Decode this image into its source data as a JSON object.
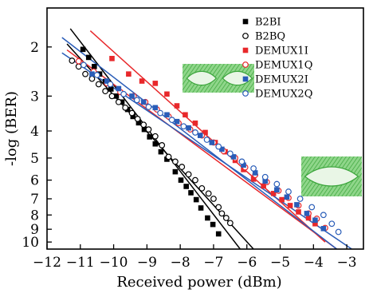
{
  "chart_data": {
    "type": "scatter",
    "xlabel": "Received power (dBm)",
    "ylabel": "-log (BER)",
    "x_axis": {
      "range": [
        -12,
        -2.5
      ],
      "ticks": [
        -12,
        -11,
        -10,
        -9,
        -8,
        -7,
        -6,
        -5,
        -4,
        -3
      ],
      "tick_labels": [
        "−12",
        "−11",
        "−10",
        "−9",
        "−8",
        "−7",
        "−6",
        "−5",
        "−4",
        "−3"
      ]
    },
    "y_axis": {
      "scale": "log(-log10 BER)",
      "range": [
        1.45,
        10.6
      ],
      "ticks": [
        2,
        3,
        4,
        5,
        6,
        7,
        8,
        9,
        10
      ],
      "tick_labels": [
        "2",
        "3",
        "4",
        "5",
        "6",
        "7",
        "8",
        "9",
        "10"
      ],
      "inverted": true
    },
    "legend": {
      "position": "top-right",
      "frame": false
    },
    "insets": [
      {
        "content": "eye-diagram",
        "position": "upper-middle"
      },
      {
        "content": "eye-diagram",
        "position": "lower-right"
      }
    ],
    "series": [
      {
        "name": "B2BI",
        "marker": "square-filled",
        "color": "#000000",
        "points": [
          [
            -10.92,
            2.04
          ],
          [
            -10.75,
            2.18
          ],
          [
            -10.58,
            2.35
          ],
          [
            -10.42,
            2.5
          ],
          [
            -10.25,
            2.66
          ],
          [
            -10.08,
            2.83
          ],
          [
            -9.92,
            3.0
          ],
          [
            -9.75,
            3.15
          ],
          [
            -9.58,
            3.35
          ],
          [
            -9.42,
            3.55
          ],
          [
            -9.25,
            3.74
          ],
          [
            -9.08,
            3.95
          ],
          [
            -8.92,
            4.2
          ],
          [
            -8.75,
            4.45
          ],
          [
            -8.58,
            4.75
          ],
          [
            -8.4,
            5.05
          ],
          [
            -8.15,
            5.6
          ],
          [
            -7.98,
            6.0
          ],
          [
            -7.82,
            6.32
          ],
          [
            -7.68,
            6.66
          ],
          [
            -7.52,
            7.05
          ],
          [
            -7.38,
            7.55
          ],
          [
            -7.18,
            8.2
          ],
          [
            -7.02,
            8.65
          ],
          [
            -6.85,
            9.35
          ]
        ],
        "fit": [
          [
            -11.3,
            1.72
          ],
          [
            -6.2,
            10.6
          ]
        ]
      },
      {
        "name": "B2BQ",
        "marker": "circle-open",
        "color": "#000000",
        "points": [
          [
            -11.25,
            2.24
          ],
          [
            -11.05,
            2.35
          ],
          [
            -10.85,
            2.5
          ],
          [
            -10.65,
            2.6
          ],
          [
            -10.45,
            2.72
          ],
          [
            -10.25,
            2.88
          ],
          [
            -10.05,
            3.0
          ],
          [
            -9.85,
            3.15
          ],
          [
            -9.65,
            3.3
          ],
          [
            -9.45,
            3.45
          ],
          [
            -9.28,
            3.62
          ],
          [
            -9.1,
            3.8
          ],
          [
            -8.95,
            3.95
          ],
          [
            -8.75,
            4.18
          ],
          [
            -8.55,
            4.5
          ],
          [
            -8.35,
            4.95
          ],
          [
            -8.15,
            5.15
          ],
          [
            -7.95,
            5.38
          ],
          [
            -7.75,
            5.72
          ],
          [
            -7.55,
            6.0
          ],
          [
            -7.35,
            6.42
          ],
          [
            -7.15,
            6.7
          ],
          [
            -7.0,
            7.0
          ],
          [
            -6.85,
            7.5
          ],
          [
            -6.75,
            7.9
          ],
          [
            -6.62,
            8.2
          ],
          [
            -6.5,
            8.55
          ]
        ],
        "fit": [
          [
            -11.4,
            1.95
          ],
          [
            -5.8,
            10.6
          ]
        ]
      },
      {
        "name": "DEMUX1I",
        "marker": "square-filled",
        "color": "#e8282b",
        "points": [
          [
            -10.05,
            2.2
          ],
          [
            -9.55,
            2.5
          ],
          [
            -9.15,
            2.65
          ],
          [
            -8.75,
            2.7
          ],
          [
            -8.4,
            2.95
          ],
          [
            -8.1,
            3.25
          ],
          [
            -7.85,
            3.5
          ],
          [
            -7.55,
            3.75
          ],
          [
            -7.25,
            4.05
          ],
          [
            -6.95,
            4.4
          ],
          [
            -6.65,
            4.75
          ],
          [
            -6.35,
            5.1
          ],
          [
            -6.1,
            5.5
          ],
          [
            -5.8,
            5.95
          ],
          [
            -5.5,
            6.3
          ],
          [
            -5.2,
            6.7
          ],
          [
            -4.95,
            7.05
          ],
          [
            -4.7,
            7.4
          ],
          [
            -4.45,
            7.8
          ],
          [
            -4.15,
            8.2
          ],
          [
            -3.95,
            8.6
          ]
        ],
        "fit": [
          [
            -10.7,
            1.75
          ],
          [
            -3.65,
            10.0
          ]
        ]
      },
      {
        "name": "DEMUX1Q",
        "marker": "circle-open",
        "color": "#e8282b",
        "points": [
          [
            -11.05,
            2.25
          ],
          [
            -10.6,
            2.45
          ],
          [
            -10.2,
            2.7
          ],
          [
            -9.8,
            2.9
          ],
          [
            -9.4,
            3.0
          ],
          [
            -9.05,
            3.15
          ],
          [
            -8.7,
            3.35
          ],
          [
            -8.35,
            3.55
          ],
          [
            -8.05,
            3.75
          ],
          [
            -7.7,
            3.95
          ],
          [
            -7.35,
            4.15
          ],
          [
            -7.0,
            4.4
          ],
          [
            -6.7,
            4.72
          ],
          [
            -6.35,
            5.0
          ],
          [
            -6.05,
            5.4
          ],
          [
            -5.75,
            5.75
          ],
          [
            -5.4,
            6.1
          ],
          [
            -5.05,
            6.55
          ],
          [
            -4.75,
            6.95
          ],
          [
            -4.45,
            7.4
          ],
          [
            -4.15,
            7.9
          ],
          [
            -3.9,
            8.25
          ],
          [
            -3.65,
            8.9
          ]
        ],
        "fit": [
          [
            -11.4,
            2.05
          ],
          [
            -3.3,
            10.6
          ]
        ]
      },
      {
        "name": "DEMUX2I",
        "marker": "square-filled",
        "color": "#2a5db8",
        "points": [
          [
            -10.65,
            2.5
          ],
          [
            -10.2,
            2.65
          ],
          [
            -9.85,
            2.82
          ],
          [
            -9.45,
            3.0
          ],
          [
            -9.1,
            3.15
          ],
          [
            -8.75,
            3.3
          ],
          [
            -8.4,
            3.5
          ],
          [
            -8.1,
            3.7
          ],
          [
            -7.75,
            3.9
          ],
          [
            -7.4,
            4.15
          ],
          [
            -7.05,
            4.4
          ],
          [
            -6.75,
            4.65
          ],
          [
            -6.4,
            4.95
          ],
          [
            -6.1,
            5.3
          ],
          [
            -5.75,
            5.65
          ],
          [
            -5.45,
            6.05
          ],
          [
            -5.1,
            6.5
          ],
          [
            -4.8,
            6.9
          ],
          [
            -4.5,
            7.35
          ],
          [
            -4.2,
            7.9
          ],
          [
            -3.95,
            8.35
          ],
          [
            -3.7,
            8.95
          ]
        ],
        "fit": [
          [
            -11.55,
            1.85
          ],
          [
            -3.3,
            10.6
          ]
        ]
      },
      {
        "name": "DEMUX2Q",
        "marker": "circle-open",
        "color": "#2a5db8",
        "points": [
          [
            -10.9,
            2.32
          ],
          [
            -10.5,
            2.52
          ],
          [
            -10.1,
            2.72
          ],
          [
            -9.7,
            2.95
          ],
          [
            -9.3,
            3.1
          ],
          [
            -8.95,
            3.28
          ],
          [
            -8.6,
            3.45
          ],
          [
            -8.25,
            3.65
          ],
          [
            -7.9,
            3.85
          ],
          [
            -7.55,
            4.05
          ],
          [
            -7.2,
            4.3
          ],
          [
            -6.85,
            4.55
          ],
          [
            -6.5,
            4.82
          ],
          [
            -6.15,
            5.15
          ],
          [
            -5.8,
            5.45
          ],
          [
            -5.45,
            5.85
          ],
          [
            -5.1,
            6.2
          ],
          [
            -4.75,
            6.6
          ],
          [
            -4.4,
            7.0
          ],
          [
            -4.05,
            7.5
          ],
          [
            -3.7,
            8.0
          ],
          [
            -3.45,
            8.6
          ],
          [
            -3.25,
            9.2
          ]
        ],
        "fit": [
          [
            -11.55,
            2.1
          ],
          [
            -2.85,
            10.6
          ]
        ]
      }
    ]
  }
}
